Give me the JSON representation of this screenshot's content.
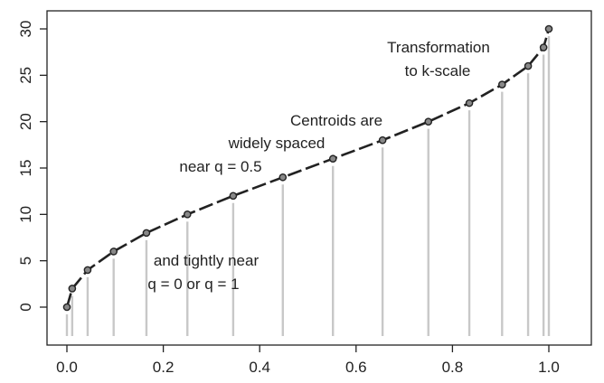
{
  "chart_data": {
    "type": "line",
    "title": "",
    "xlabel": "",
    "ylabel": "",
    "xlim": [
      0.0,
      1.0
    ],
    "ylim": [
      0,
      30
    ],
    "x_ticks": [
      "0.0",
      "0.2",
      "0.4",
      "0.6",
      "0.8",
      "1.0"
    ],
    "y_ticks": [
      "0",
      "5",
      "10",
      "15",
      "20",
      "25",
      "30"
    ],
    "grid": false,
    "series": [
      {
        "x": [
          0.0,
          0.011,
          0.043,
          0.097,
          0.165,
          0.25,
          0.345,
          0.448,
          0.552,
          0.655,
          0.75,
          0.835,
          0.903,
          0.957,
          0.989,
          1.0
        ],
        "y": [
          0,
          2,
          4,
          6,
          8,
          10,
          12,
          14,
          16,
          18,
          20,
          22,
          24,
          26,
          28,
          30
        ]
      }
    ],
    "annotations": [
      {
        "lines": [
          "Transformation",
          "to k-scale"
        ]
      },
      {
        "lines": [
          "Centroids are",
          "widely spaced",
          "near q = 0.5"
        ]
      },
      {
        "lines": [
          "and tightly near",
          "q = 0 or q = 1"
        ]
      }
    ]
  },
  "colors": {
    "curve": "#222222",
    "point_fill": "#888888",
    "stem": "#c8c8c8",
    "axis": "#222222"
  }
}
